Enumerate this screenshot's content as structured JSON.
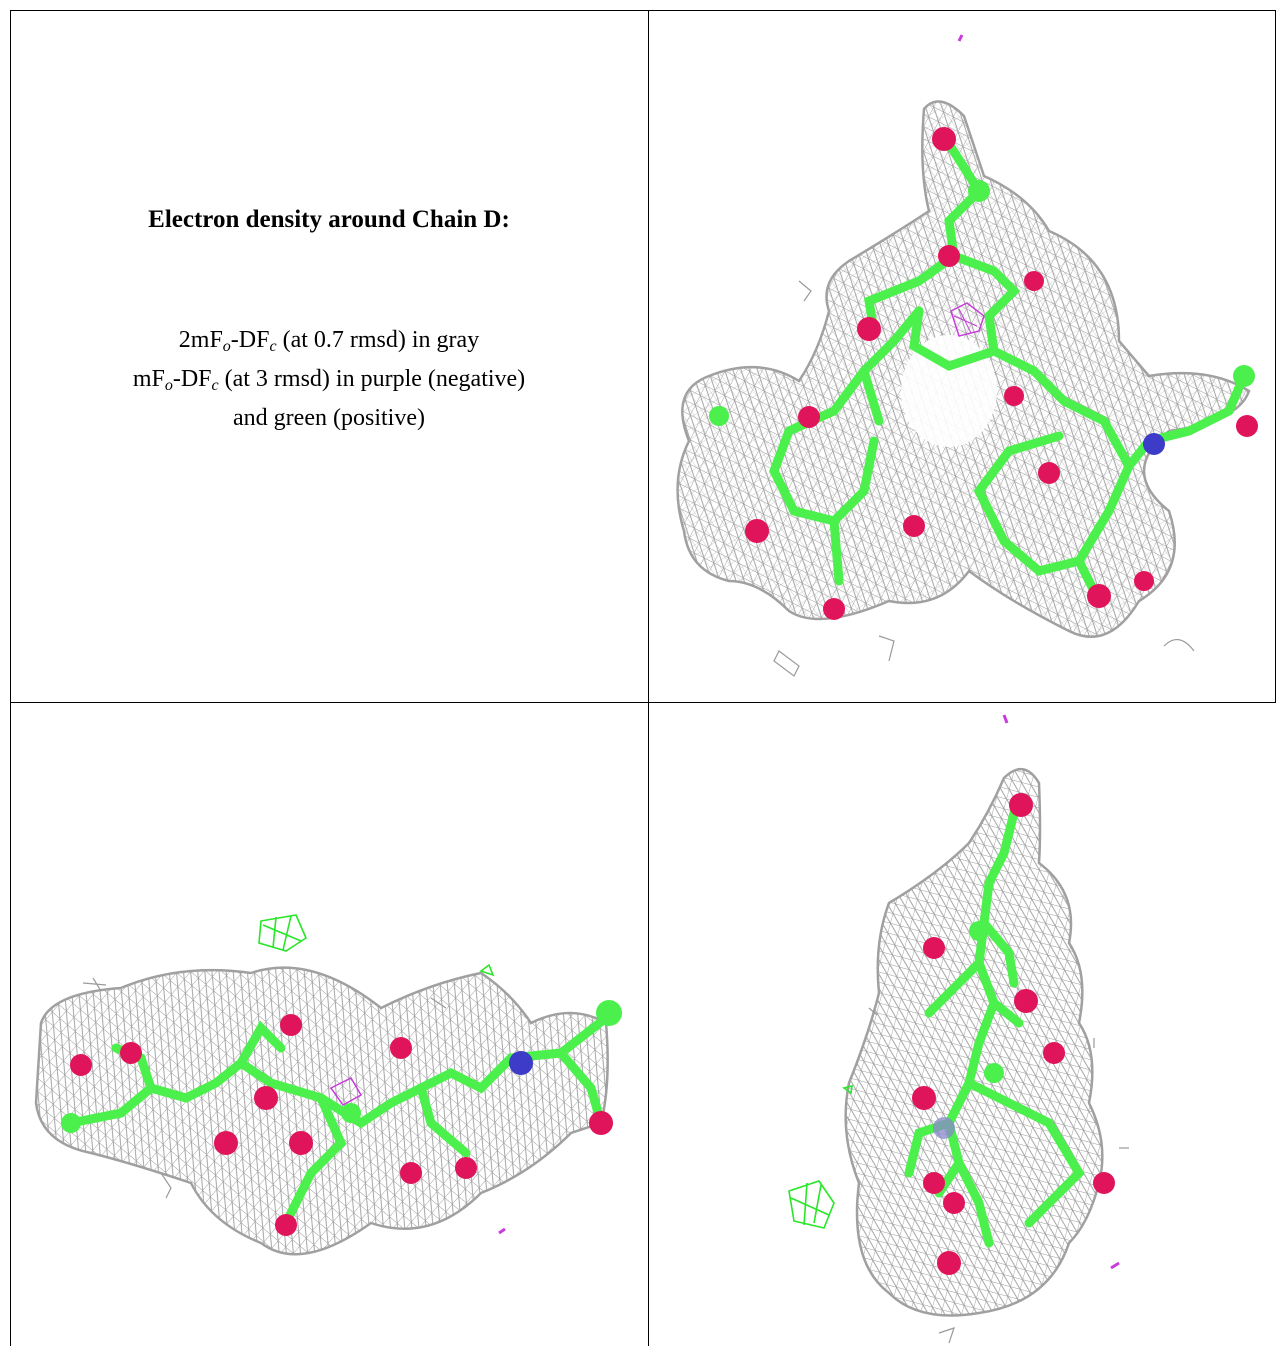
{
  "caption": {
    "title": "Electron density around Chain D:",
    "line1_prefix": "2mF",
    "line1_sub1": "o",
    "line1_mid": "-DF",
    "line1_sub2": "c",
    "line1_suffix": " (at 0.7 rmsd) in gray",
    "line2_prefix": "mF",
    "line2_sub1": "o",
    "line2_mid": "-DF",
    "line2_sub2": "c",
    "line2_suffix": " (at 3 rmsd) in purple (negative)",
    "line3": "and green (positive)"
  },
  "colors": {
    "mesh_gray": "#9a9a9a",
    "carbon_green": "#4cf04c",
    "oxygen_red": "#e0145a",
    "nitrogen_blue": "#3c3cc8",
    "negative_purple": "#c83cdc",
    "positive_green": "#28e628"
  }
}
